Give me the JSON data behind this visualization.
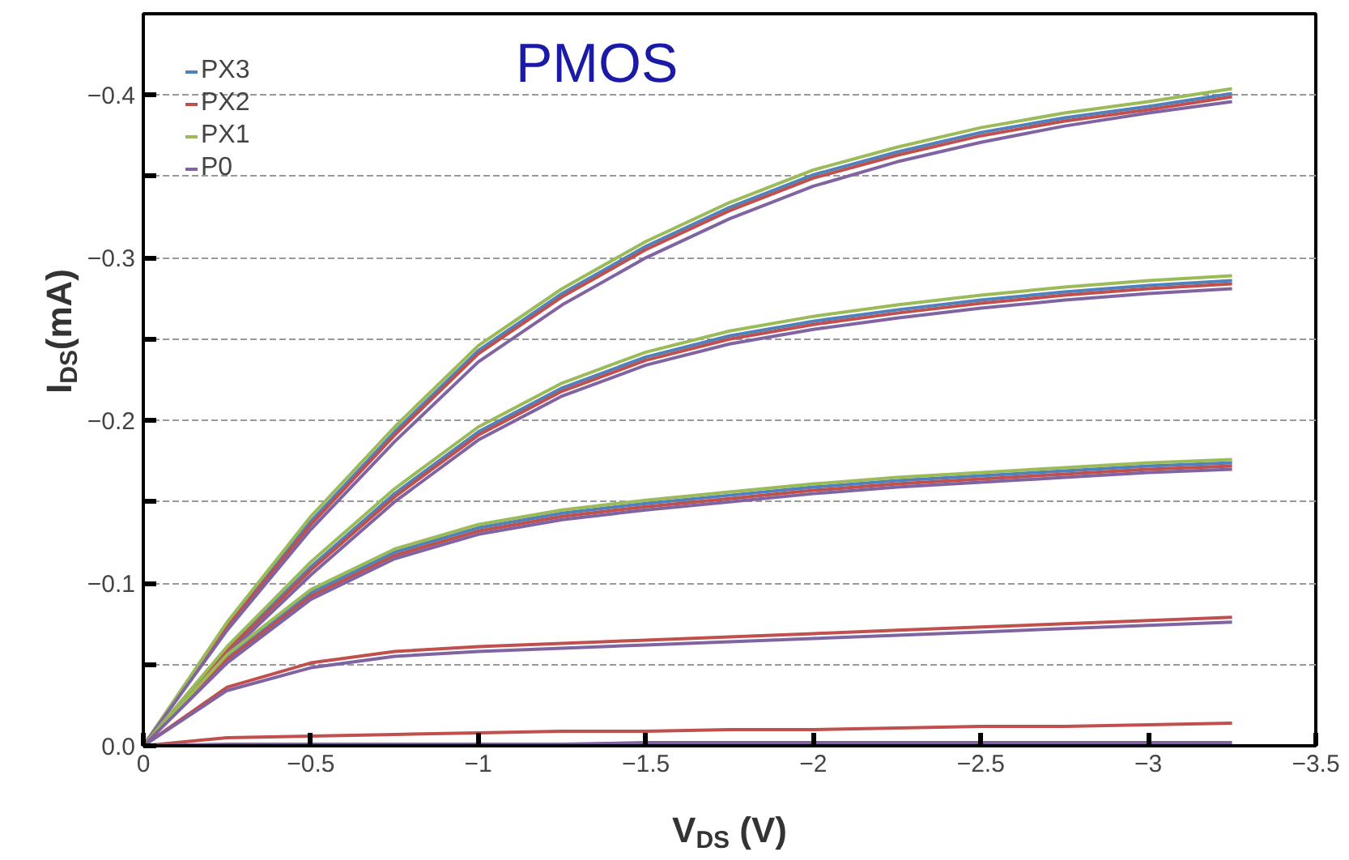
{
  "chart_data": {
    "type": "line",
    "title": "PMOS",
    "xlabel": "V$_{DS}$ (V)",
    "ylabel": "I$_{DS}$(mA)",
    "x": [
      0,
      -0.25,
      -0.5,
      -0.75,
      -1,
      -1.25,
      -1.5,
      -1.75,
      -2,
      -2.25,
      -2.5,
      -2.75,
      -3,
      -3.25
    ],
    "xlim": [
      0,
      -3.5
    ],
    "ylim": [
      0,
      -0.45
    ],
    "xticks": [
      {
        "value": 0,
        "label": "0"
      },
      -0.5,
      -1,
      -1.5,
      -2,
      -2.5,
      -3,
      -3.5
    ],
    "yticks": [
      {
        "value": 0,
        "label": "0.0"
      },
      {
        "value": -0.05,
        "label": null
      },
      -0.1,
      {
        "value": -0.15,
        "label": null
      },
      -0.2,
      {
        "value": -0.25,
        "label": null
      },
      -0.3,
      {
        "value": -0.35,
        "label": null
      },
      -0.4
    ],
    "grid": "y",
    "legend": "top left",
    "line_style": "solid",
    "series": [
      {
        "name": "PX3",
        "color": "#4f81bd",
        "values": [
          0,
          -0.074,
          -0.138,
          -0.193,
          -0.243,
          -0.278,
          -0.307,
          -0.331,
          -0.351,
          -0.365,
          -0.377,
          -0.386,
          -0.393,
          -0.401
        ]
      },
      {
        "name": "PX2",
        "color": "#c0504d",
        "values": [
          0,
          -0.073,
          -0.136,
          -0.191,
          -0.241,
          -0.276,
          -0.305,
          -0.329,
          -0.349,
          -0.363,
          -0.375,
          -0.384,
          -0.391,
          -0.399
        ]
      },
      {
        "name": "PX1",
        "color": "#9bbb59",
        "values": [
          0,
          -0.076,
          -0.141,
          -0.196,
          -0.246,
          -0.281,
          -0.31,
          -0.334,
          -0.354,
          -0.368,
          -0.38,
          -0.389,
          -0.396,
          -0.404
        ]
      },
      {
        "name": "P0",
        "color": "#8064a2",
        "values": [
          0,
          -0.071,
          -0.133,
          -0.187,
          -0.236,
          -0.271,
          -0.3,
          -0.324,
          -0.344,
          -0.359,
          -0.371,
          -0.381,
          -0.389,
          -0.396
        ]
      },
      {
        "color": "#4f81bd",
        "values": [
          0,
          -0.059,
          -0.11,
          -0.155,
          -0.193,
          -0.22,
          -0.239,
          -0.252,
          -0.261,
          -0.268,
          -0.274,
          -0.279,
          -0.283,
          -0.286
        ]
      },
      {
        "color": "#c0504d",
        "values": [
          0,
          -0.058,
          -0.108,
          -0.153,
          -0.191,
          -0.218,
          -0.237,
          -0.25,
          -0.259,
          -0.266,
          -0.272,
          -0.277,
          -0.281,
          -0.284
        ]
      },
      {
        "color": "#9bbb59",
        "values": [
          0,
          -0.061,
          -0.113,
          -0.158,
          -0.196,
          -0.223,
          -0.242,
          -0.255,
          -0.264,
          -0.271,
          -0.277,
          -0.282,
          -0.286,
          -0.289
        ]
      },
      {
        "color": "#8064a2",
        "values": [
          0,
          -0.056,
          -0.105,
          -0.15,
          -0.188,
          -0.215,
          -0.234,
          -0.247,
          -0.256,
          -0.263,
          -0.269,
          -0.274,
          -0.278,
          -0.281
        ]
      },
      {
        "color": "#4f81bd",
        "values": [
          0,
          -0.054,
          -0.094,
          -0.119,
          -0.134,
          -0.143,
          -0.149,
          -0.154,
          -0.159,
          -0.163,
          -0.166,
          -0.169,
          -0.172,
          -0.174
        ]
      },
      {
        "color": "#c0504d",
        "values": [
          0,
          -0.053,
          -0.092,
          -0.117,
          -0.132,
          -0.141,
          -0.147,
          -0.152,
          -0.157,
          -0.161,
          -0.164,
          -0.167,
          -0.17,
          -0.172
        ]
      },
      {
        "color": "#9bbb59",
        "values": [
          0,
          -0.056,
          -0.096,
          -0.121,
          -0.136,
          -0.145,
          -0.151,
          -0.156,
          -0.161,
          -0.165,
          -0.168,
          -0.171,
          -0.174,
          -0.176
        ]
      },
      {
        "color": "#8064a2",
        "values": [
          0,
          -0.051,
          -0.09,
          -0.115,
          -0.13,
          -0.139,
          -0.145,
          -0.15,
          -0.155,
          -0.159,
          -0.162,
          -0.165,
          -0.168,
          -0.17
        ]
      },
      {
        "color": "#c0504d",
        "values": [
          0,
          -0.036,
          -0.051,
          -0.058,
          -0.061,
          -0.063,
          -0.065,
          -0.067,
          -0.069,
          -0.071,
          -0.073,
          -0.075,
          -0.077,
          -0.079
        ]
      },
      {
        "color": "#8064a2",
        "values": [
          0,
          -0.034,
          -0.048,
          -0.055,
          -0.058,
          -0.06,
          -0.062,
          -0.064,
          -0.066,
          -0.068,
          -0.07,
          -0.072,
          -0.074,
          -0.076
        ]
      },
      {
        "color": "#c0504d",
        "values": [
          0,
          -0.005,
          -0.006,
          -0.007,
          -0.008,
          -0.009,
          -0.009,
          -0.01,
          -0.01,
          -0.011,
          -0.012,
          -0.012,
          -0.013,
          -0.014
        ]
      },
      {
        "color": "#8064a2",
        "values": [
          0,
          -0.001,
          -0.001,
          -0.001,
          -0.001,
          -0.001,
          -0.002,
          -0.002,
          -0.002,
          -0.002,
          -0.002,
          -0.002,
          -0.002,
          -0.002
        ]
      }
    ]
  }
}
